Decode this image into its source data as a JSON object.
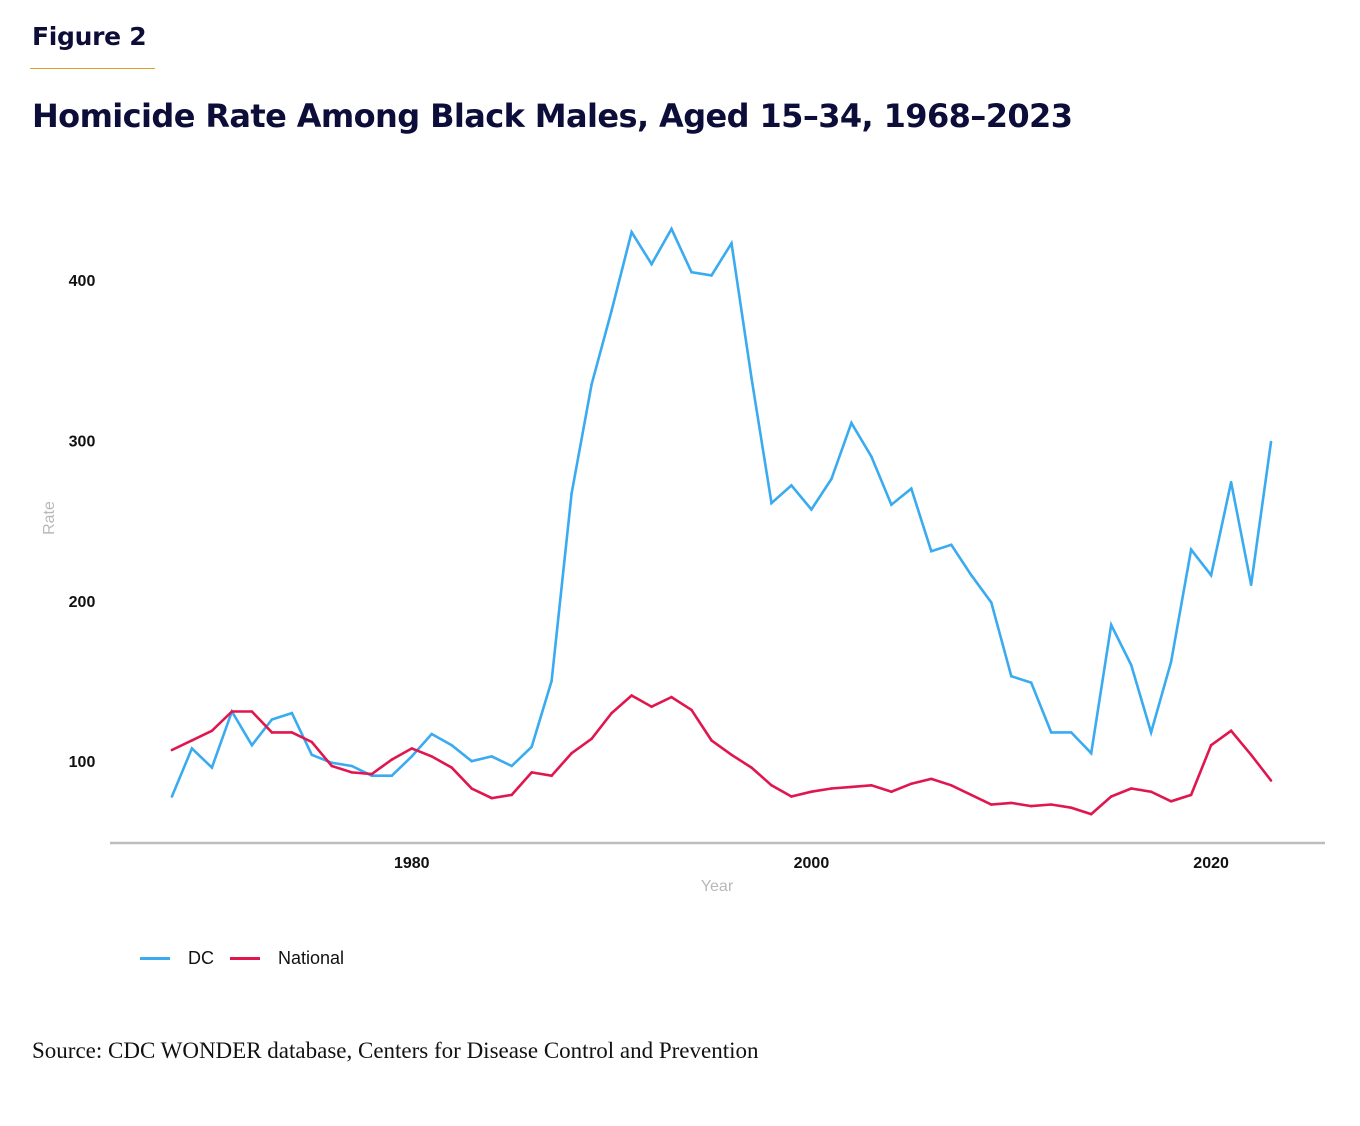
{
  "figure_label": "Figure 2",
  "title": "Homicide Rate Among Black Males, Aged 15–34, 1968–2023",
  "source": "Source: CDC WONDER database, Centers for Disease Control and Prevention",
  "colors": {
    "dc": "#3aabf0",
    "national": "#e0174f",
    "accent_rule": "#e0a030",
    "axis": "#bdbdbd"
  },
  "chart_data": {
    "type": "line",
    "title": "Homicide Rate Among Black Males, Aged 15–34, 1968–2023",
    "xlabel": "Year",
    "ylabel": "Rate",
    "x": [
      1968,
      1969,
      1970,
      1971,
      1972,
      1973,
      1974,
      1975,
      1976,
      1977,
      1978,
      1979,
      1980,
      1981,
      1982,
      1983,
      1984,
      1985,
      1986,
      1987,
      1988,
      1989,
      1990,
      1991,
      1992,
      1993,
      1994,
      1995,
      1996,
      1997,
      1998,
      1999,
      2000,
      2001,
      2002,
      2003,
      2004,
      2005,
      2006,
      2007,
      2008,
      2009,
      2010,
      2011,
      2012,
      2013,
      2014,
      2015,
      2016,
      2017,
      2018,
      2019,
      2020,
      2021,
      2022,
      2023
    ],
    "xlim": [
      1964.9,
      2025.7
    ],
    "ylim": [
      49,
      450
    ],
    "x_ticks": [
      1980,
      2000,
      2020
    ],
    "x_tick_labels": [
      "1980",
      "2000",
      "2020"
    ],
    "y_ticks": [
      100,
      200,
      300,
      400
    ],
    "y_tick_labels": [
      "100",
      "200",
      "300",
      "400"
    ],
    "grid": false,
    "legend_position": "bottom-left",
    "series": [
      {
        "name": "DC",
        "color": "#3aabf0",
        "values": [
          78,
          108,
          96,
          131,
          110,
          126,
          130,
          104,
          99,
          97,
          91,
          91,
          103,
          117,
          110,
          100,
          103,
          97,
          109,
          150,
          267,
          335,
          381,
          430,
          410,
          432,
          405,
          403,
          423,
          339,
          261,
          272,
          257,
          276,
          311,
          290,
          260,
          270,
          231,
          235,
          216,
          199,
          153,
          149,
          118,
          118,
          105,
          185,
          160,
          118,
          162,
          232,
          216,
          274,
          210,
          299
        ]
      },
      {
        "name": "National",
        "color": "#e0174f",
        "values": [
          107,
          113,
          119,
          131,
          131,
          118,
          118,
          112,
          97,
          93,
          92,
          101,
          108,
          103,
          96,
          83,
          77,
          79,
          93,
          91,
          105,
          114,
          130,
          141,
          134,
          140,
          132,
          113,
          104,
          96,
          85,
          78,
          81,
          83,
          84,
          85,
          81,
          86,
          89,
          85,
          79,
          73,
          74,
          72,
          73,
          71,
          67,
          78,
          83,
          81,
          75,
          79,
          110,
          119,
          104,
          88
        ]
      }
    ]
  },
  "legend": [
    {
      "label": "DC",
      "color": "#3aabf0"
    },
    {
      "label": "National",
      "color": "#e0174f"
    }
  ]
}
